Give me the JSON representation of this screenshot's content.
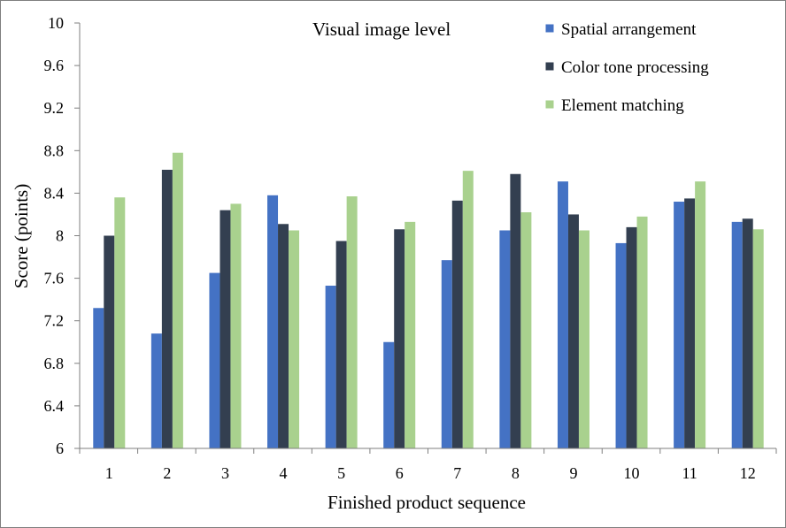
{
  "chart_data": {
    "type": "bar",
    "title": "Visual image level",
    "xlabel": "Finished product sequence",
    "ylabel": "Score (points)",
    "ylim": [
      6,
      10
    ],
    "yticks": [
      "6",
      "6.4",
      "6.8",
      "7.2",
      "7.6",
      "8",
      "8.4",
      "8.8",
      "9.2",
      "9.6",
      "10"
    ],
    "ytick_values": [
      6,
      6.4,
      6.8,
      7.2,
      7.6,
      8,
      8.4,
      8.8,
      9.2,
      9.6,
      10
    ],
    "categories": [
      "1",
      "2",
      "3",
      "4",
      "5",
      "6",
      "7",
      "8",
      "9",
      "10",
      "11",
      "12"
    ],
    "grid": false,
    "legend_position": "top-right",
    "series": [
      {
        "name": "Spatial arrangement",
        "color": "#4472c4",
        "values": [
          7.32,
          7.08,
          7.65,
          8.38,
          7.53,
          7.0,
          7.77,
          8.05,
          8.51,
          7.93,
          8.32,
          8.13
        ]
      },
      {
        "name": "Color tone processing",
        "color": "#333f50",
        "values": [
          8.0,
          8.62,
          8.24,
          8.11,
          7.95,
          8.06,
          8.33,
          8.58,
          8.2,
          8.08,
          8.35,
          8.16
        ]
      },
      {
        "name": "Element matching",
        "color": "#a9d18e",
        "values": [
          8.36,
          8.78,
          8.3,
          8.05,
          8.37,
          8.13,
          8.61,
          8.22,
          8.05,
          8.18,
          8.51,
          8.06
        ]
      }
    ]
  }
}
